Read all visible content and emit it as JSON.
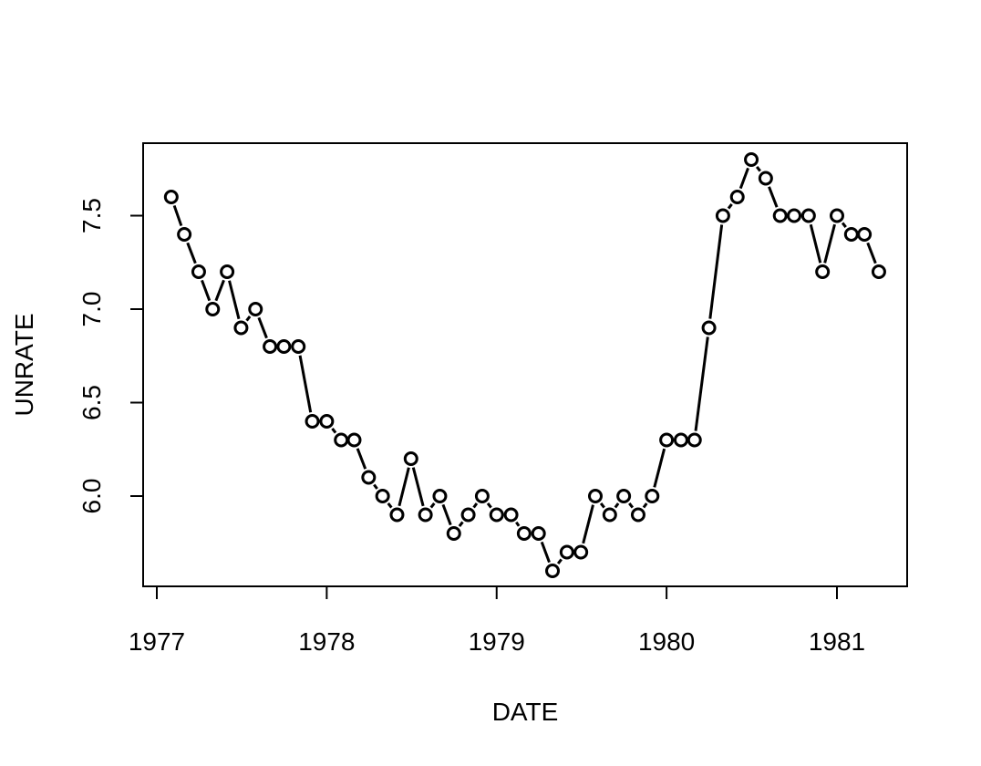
{
  "chart_data": {
    "type": "line",
    "title": "",
    "xlabel": "DATE",
    "ylabel": "UNRATE",
    "x_ticks": [
      "1977",
      "1978",
      "1979",
      "1980",
      "1981"
    ],
    "y_ticks": [
      "6.0",
      "6.5",
      "7.0",
      "7.5"
    ],
    "xlim": [
      "1977-01-01",
      "1981-05-01"
    ],
    "ylim": [
      5.5,
      7.82
    ],
    "grid": false,
    "series": [
      {
        "x": [
          "1977-02-01",
          "1977-03-01",
          "1977-04-01",
          "1977-05-01",
          "1977-06-01",
          "1977-07-01",
          "1977-08-01",
          "1977-09-01",
          "1977-10-01",
          "1977-11-01",
          "1977-12-01",
          "1978-01-01",
          "1978-02-01",
          "1978-03-01",
          "1978-04-01",
          "1978-05-01",
          "1978-06-01",
          "1978-07-01",
          "1978-08-01",
          "1978-09-01",
          "1978-10-01",
          "1978-11-01",
          "1978-12-01",
          "1979-01-01",
          "1979-02-01",
          "1979-03-01",
          "1979-04-01",
          "1979-05-01",
          "1979-06-01",
          "1979-07-01",
          "1979-08-01",
          "1979-09-01",
          "1979-10-01",
          "1979-11-01",
          "1979-12-01",
          "1980-01-01",
          "1980-02-01",
          "1980-03-01",
          "1980-04-01",
          "1980-05-01",
          "1980-06-01",
          "1980-07-01",
          "1980-08-01",
          "1980-09-01",
          "1980-10-01",
          "1980-11-01",
          "1980-12-01",
          "1981-01-01",
          "1981-02-01",
          "1981-03-01",
          "1981-04-01"
        ],
        "values": [
          7.6,
          7.4,
          7.2,
          7.0,
          7.2,
          6.9,
          7.0,
          6.8,
          6.8,
          6.8,
          6.4,
          6.4,
          6.3,
          6.3,
          6.1,
          6.0,
          5.9,
          6.2,
          5.9,
          6.0,
          5.8,
          5.9,
          6.0,
          5.9,
          5.9,
          5.8,
          5.8,
          5.6,
          5.7,
          5.7,
          6.0,
          5.9,
          6.0,
          5.9,
          6.0,
          6.3,
          6.3,
          6.3,
          6.9,
          7.5,
          7.6,
          7.8,
          7.7,
          7.5,
          7.5,
          7.5,
          7.2,
          7.5,
          7.4,
          7.4,
          7.2
        ]
      }
    ]
  }
}
